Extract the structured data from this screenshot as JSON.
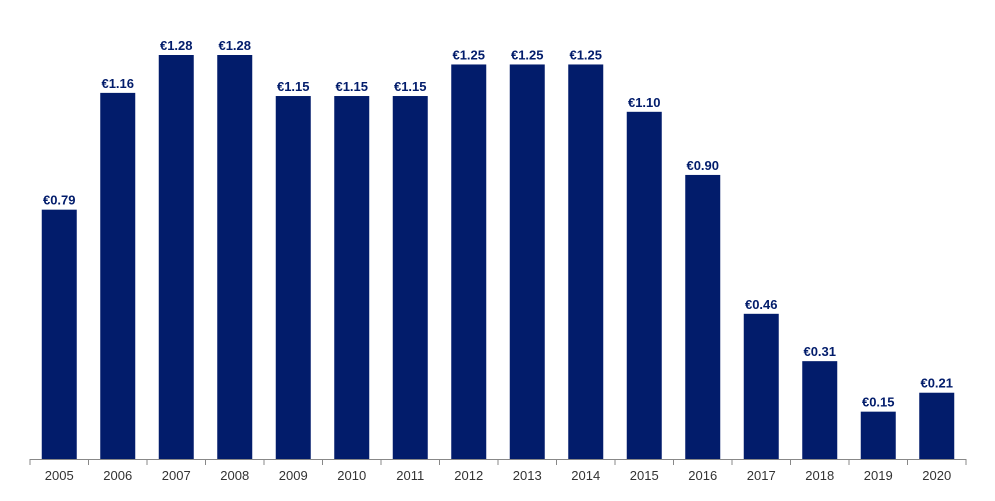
{
  "chart_data": {
    "type": "bar",
    "categories": [
      "2005",
      "2006",
      "2007",
      "2008",
      "2009",
      "2010",
      "2011",
      "2012",
      "2013",
      "2014",
      "2015",
      "2016",
      "2017",
      "2018",
      "2019",
      "2020"
    ],
    "values": [
      0.79,
      1.16,
      1.28,
      1.28,
      1.15,
      1.15,
      1.15,
      1.25,
      1.25,
      1.25,
      1.1,
      0.9,
      0.46,
      0.31,
      0.15,
      0.21
    ],
    "data_labels": [
      "€0.79",
      "€1.16",
      "€1.28",
      "€1.28",
      "€1.15",
      "€1.15",
      "€1.15",
      "€1.25",
      "€1.25",
      "€1.25",
      "€1.10",
      "€0.90",
      "€0.46",
      "€0.31",
      "€0.15",
      "€0.21"
    ],
    "title": "",
    "xlabel": "",
    "ylabel": "",
    "ylim": [
      0,
      1.28
    ],
    "grid": false,
    "legend": "none",
    "colors": {
      "bar": "#021C6B",
      "label": "#021C6B",
      "axis": "#888888",
      "tick_text": "#333333"
    }
  }
}
